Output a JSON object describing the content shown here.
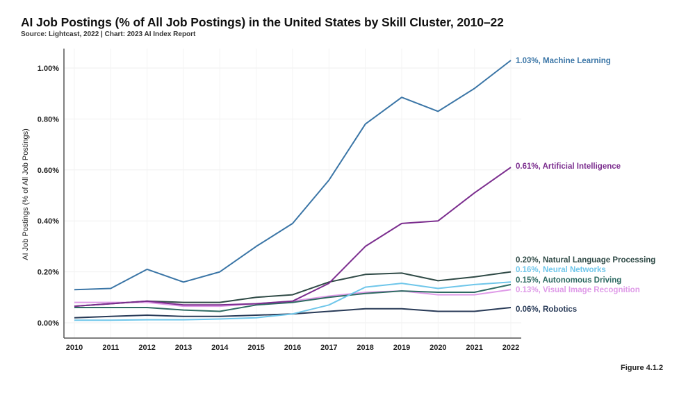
{
  "header": {
    "title": "AI Job Postings (% of All Job Postings) in the United States by Skill Cluster, 2010–22",
    "subtitle": "Source: Lightcast, 2022 | Chart: 2023 AI Index Report"
  },
  "footer": {
    "figure_label": "Figure 4.1.2"
  },
  "chart_data": {
    "type": "line",
    "title": "AI Job Postings (% of All Job Postings) in the United States by Skill Cluster, 2010–22",
    "subtitle": "Source: Lightcast, 2022 | Chart: 2023 AI Index Report",
    "xlabel": "",
    "ylabel": "AI Job Postings (% of All Job Postings)",
    "x": [
      2010,
      2011,
      2012,
      2013,
      2014,
      2015,
      2016,
      2017,
      2018,
      2019,
      2020,
      2021,
      2022
    ],
    "x_tick_labels": [
      "2010",
      "2011",
      "2012",
      "2013",
      "2014",
      "2015",
      "2016",
      "2017",
      "2018",
      "2019",
      "2020",
      "2021",
      "2022"
    ],
    "y_ticks": [
      0,
      0.2,
      0.4,
      0.6,
      0.8,
      1.0
    ],
    "y_tick_labels": [
      "0.00%",
      "0.20%",
      "0.40%",
      "0.60%",
      "0.80%",
      "1.00%"
    ],
    "ylim": [
      0,
      1.05
    ],
    "grid": true,
    "legend": "end-of-line labels (right)",
    "series": [
      {
        "name": "Machine Learning",
        "end_label": "1.03%, Machine Learning",
        "color": "#3a75a6",
        "values": [
          0.13,
          0.135,
          0.21,
          0.16,
          0.2,
          0.3,
          0.39,
          0.56,
          0.78,
          0.885,
          0.83,
          0.92,
          1.03
        ]
      },
      {
        "name": "Artificial Intelligence",
        "end_label": "0.61%, Artificial Intelligence",
        "color": "#7b2d8e",
        "values": [
          0.065,
          0.075,
          0.085,
          0.07,
          0.07,
          0.075,
          0.085,
          0.155,
          0.3,
          0.39,
          0.4,
          0.51,
          0.61
        ]
      },
      {
        "name": "Natural Language Processing",
        "end_label": "0.20%, Natural Language Processing",
        "color": "#2f4a46",
        "values": [
          0.065,
          0.075,
          0.085,
          0.08,
          0.08,
          0.1,
          0.11,
          0.16,
          0.19,
          0.195,
          0.165,
          0.18,
          0.2
        ]
      },
      {
        "name": "Neural Networks",
        "end_label": "0.16%, Neural Networks",
        "color": "#6ec6ea",
        "values": [
          0.01,
          0.01,
          0.012,
          0.012,
          0.015,
          0.02,
          0.035,
          0.07,
          0.14,
          0.155,
          0.135,
          0.15,
          0.16
        ]
      },
      {
        "name": "Autonomous Driving",
        "end_label": "0.15%, Autonomous Driving",
        "color": "#2f6b63",
        "values": [
          0.06,
          0.06,
          0.06,
          0.05,
          0.045,
          0.07,
          0.08,
          0.1,
          0.115,
          0.125,
          0.12,
          0.12,
          0.15
        ]
      },
      {
        "name": "Visual Image Recognition",
        "end_label": "0.13%, Visual Image Recognition",
        "color": "#df9be8",
        "values": [
          0.08,
          0.08,
          0.08,
          0.065,
          0.065,
          0.075,
          0.085,
          0.105,
          0.12,
          0.125,
          0.11,
          0.11,
          0.13
        ]
      },
      {
        "name": "Robotics",
        "end_label": "0.06%, Robotics",
        "color": "#283a57",
        "values": [
          0.02,
          0.025,
          0.03,
          0.025,
          0.025,
          0.03,
          0.035,
          0.045,
          0.055,
          0.055,
          0.045,
          0.045,
          0.06
        ]
      }
    ]
  }
}
